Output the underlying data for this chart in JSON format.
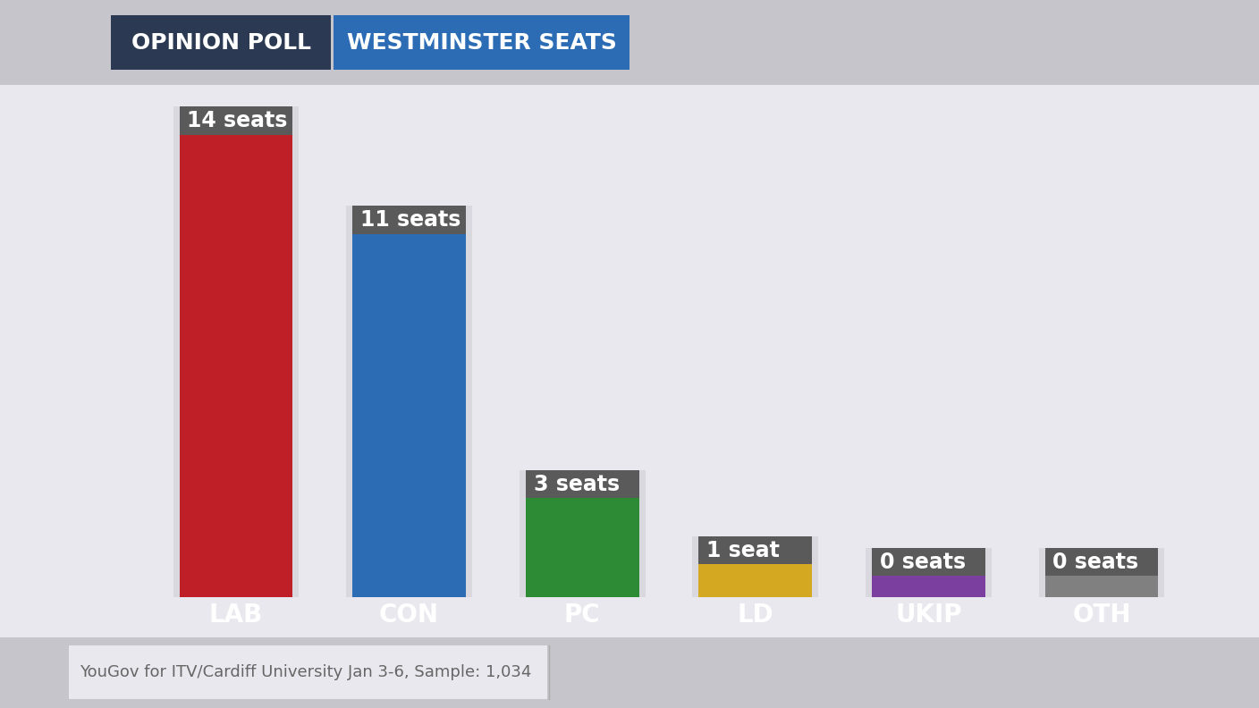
{
  "categories": [
    "LAB",
    "CON",
    "PC",
    "LD",
    "UKIP",
    "OTH"
  ],
  "values": [
    14,
    11,
    3,
    1,
    0,
    0
  ],
  "labels": [
    "14 seats",
    "11 seats",
    "3 seats",
    "1 seat",
    "0 seats",
    "0 seats"
  ],
  "bar_colors": [
    "#bf2027",
    "#2b6cb5",
    "#2e8b35",
    "#d4a820",
    "#7b3fa0",
    "#808080"
  ],
  "cap_color": "#5a5a5a",
  "background_color": "#c5c5cb",
  "chart_bg_left": "#e8e8ee",
  "chart_bg_right": "#f5f5f5",
  "title_left_bg": "#2b3a52",
  "title_right_bg": "#2b6cb5",
  "title_left_text": "OPINION POLL",
  "title_right_text": "WESTMINSTER SEATS",
  "footnote": "YouGov for ITV/Cardiff University Jan 3-6, Sample: 1,034",
  "ylim_max": 15.5,
  "bar_width": 0.72,
  "label_fontsize": 17,
  "category_fontsize": 20,
  "title_fontsize": 18,
  "footnote_fontsize": 13,
  "footnote_bg": "#e8e8ee",
  "footnote_text_color": "#666666"
}
